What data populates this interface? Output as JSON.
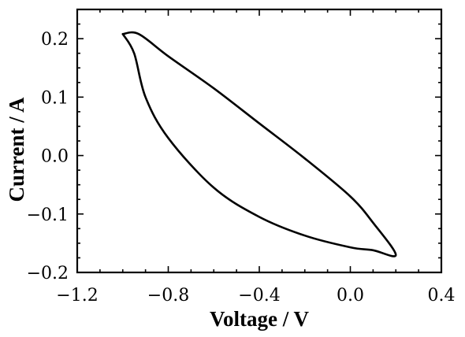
{
  "chart_data": {
    "type": "line",
    "title": "",
    "xlabel": "Voltage / V",
    "ylabel": "Current / A",
    "xlim": [
      -1.2,
      0.4
    ],
    "ylim": [
      -0.2,
      0.25
    ],
    "x_ticks": [
      -1.2,
      -0.8,
      -0.4,
      0.0,
      0.4
    ],
    "x_tick_labels": [
      "−1.2",
      "−0.8",
      "−0.4",
      "0.0",
      "0.4"
    ],
    "y_ticks": [
      -0.2,
      -0.1,
      0.0,
      0.1,
      0.2
    ],
    "y_tick_labels": [
      "−0.2",
      "−0.1",
      "0.0",
      "0.1",
      "0.2"
    ],
    "grid": false,
    "legend": "none",
    "line_color": "#000000",
    "series": [
      {
        "x": [
          -1.0,
          -0.93,
          -0.8,
          -0.6,
          -0.4,
          -0.2,
          0.0,
          0.1,
          0.2,
          0.1,
          0.0,
          -0.2,
          -0.4,
          -0.6,
          -0.8,
          -0.9,
          -0.95,
          -1.0
        ],
        "y": [
          0.208,
          0.208,
          0.17,
          0.115,
          0.055,
          -0.005,
          -0.07,
          -0.115,
          -0.17,
          -0.162,
          -0.157,
          -0.137,
          -0.105,
          -0.055,
          0.03,
          0.1,
          0.175,
          0.208
        ]
      }
    ]
  }
}
